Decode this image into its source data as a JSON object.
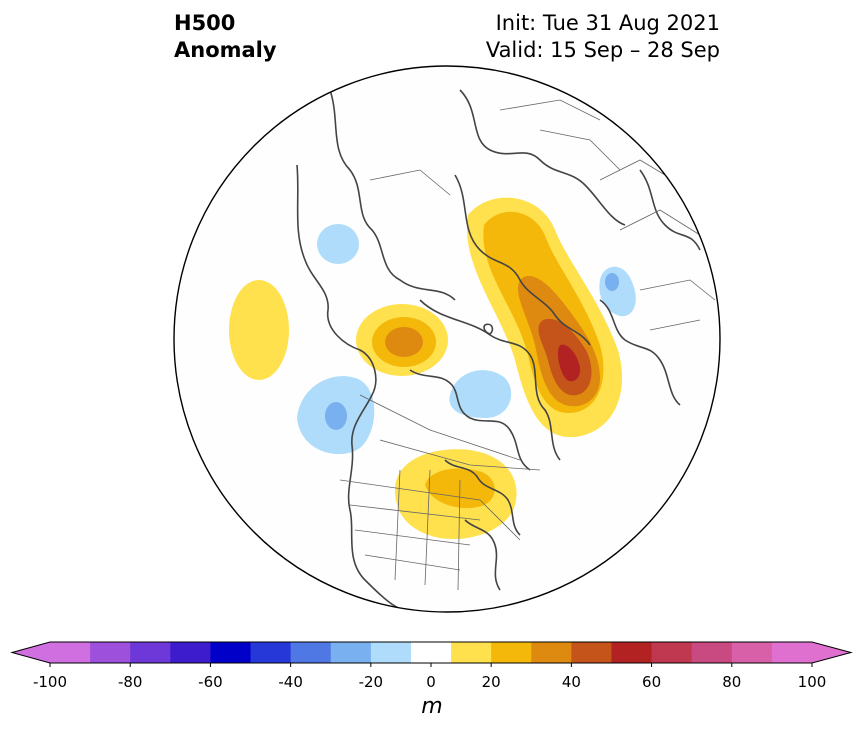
{
  "title": {
    "left_line1": "H500",
    "left_line2": "Anomaly",
    "right_line1": "Init: Tue 31 Aug 2021",
    "right_line2": "Valid: 15 Sep – 28 Sep"
  },
  "colorbar": {
    "unit_label": "m",
    "ticks": [
      "-100",
      "-80",
      "-60",
      "-40",
      "-20",
      "0",
      "20",
      "40",
      "60",
      "80",
      "100"
    ],
    "levels": [
      -100,
      -90,
      -80,
      -70,
      -60,
      -50,
      -40,
      -30,
      -20,
      -10,
      10,
      20,
      30,
      40,
      50,
      60,
      70,
      80,
      90,
      100
    ],
    "colors": [
      "#d070e0",
      "#9c50dc",
      "#6e38d8",
      "#3c1ccc",
      "#0000c8",
      "#2638d8",
      "#5078e4",
      "#78b0f0",
      "#aedcfa",
      "#ffffff",
      "#ffe14e",
      "#f4b80a",
      "#de8a10",
      "#c5541a",
      "#b22222",
      "#c03850",
      "#c84a80",
      "#d860a8",
      "#e070d0"
    ],
    "extend_low_color": "#d070e0",
    "extend_high_color": "#e070d0"
  },
  "anomalies": [
    {
      "name": "siberia-ridge",
      "sign": "positive",
      "peak_m": 60
    },
    {
      "name": "alaska-high",
      "sign": "positive",
      "peak_m": 30
    },
    {
      "name": "canada-high",
      "sign": "positive",
      "peak_m": 30
    },
    {
      "name": "pacific-high",
      "sign": "positive",
      "peak_m": 10
    },
    {
      "name": "gulf-alaska-low",
      "sign": "negative",
      "peak_m": -30
    },
    {
      "name": "canadian-archipelago-low",
      "sign": "negative",
      "peak_m": -20
    },
    {
      "name": "kamchatka-low",
      "sign": "negative",
      "peak_m": -20
    },
    {
      "name": "scandinavia-low",
      "sign": "negative",
      "peak_m": -20
    }
  ]
}
